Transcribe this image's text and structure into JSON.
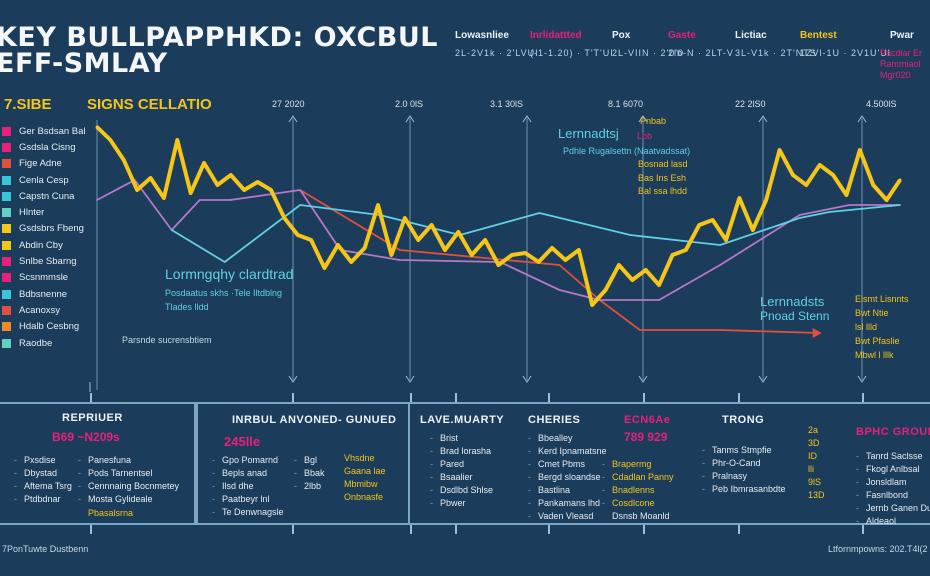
{
  "header": {
    "title_line1": "KEY BULLPAPPHKD: OXCBUL",
    "title_line2": "EFF-SMLAY"
  },
  "top_legend": [
    {
      "label": "Lowasnliee",
      "value": "2L-2V1k · 2'LVUI",
      "color": "#eef2f6"
    },
    {
      "label": "Inrlidattted",
      "value": "(-1-1.20) · T'T'UI",
      "color": "#e8207a"
    },
    {
      "label": "Pox",
      "value": "2L-VIIN · 2'0'0",
      "color": "#eef2f6"
    },
    {
      "label": "Gaste",
      "value": "2lb-N · 2LT-V",
      "color": "#e8207a"
    },
    {
      "label": "Lictiac",
      "value": "3L-V1k · 2T'NTS",
      "color": "#eef2f6"
    },
    {
      "label": "Bentest",
      "value": "1ZVl-1U · 2V1U'Ul",
      "color": "#f5c518"
    },
    {
      "label": "Pwar",
      "value": "",
      "color": "#eef2f6"
    }
  ],
  "pwar_lines": [
    "Pacdiar Er",
    "Rammiaol",
    "Mgr020"
  ],
  "section_labels": {
    "left": "7.SIBE",
    "main": "SIGNS CELLATIO"
  },
  "axis_labels": [
    "27 2020",
    "2.0 0lS",
    "3.1 30lS",
    "8.1 6070",
    "22 2lS0",
    "4.500lS"
  ],
  "side_legend": [
    {
      "label": "Ger Bsdsan Bal",
      "color": "#e8207a"
    },
    {
      "label": "Gsdsla Cisng",
      "color": "#e8207a"
    },
    {
      "label": "Fige Adne",
      "color": "#e0503c"
    },
    {
      "label": "Cenla Cesp",
      "color": "#39c6d8"
    },
    {
      "label": "Capstn Cuna",
      "color": "#39c6d8"
    },
    {
      "label": "Hlnter",
      "color": "#5fd3c0"
    },
    {
      "label": "Gsdsbrs Fbeng",
      "color": "#f5c518"
    },
    {
      "label": "Abdin Cby",
      "color": "#f5c518"
    },
    {
      "label": "Snlbe Sbarng",
      "color": "#e8207a"
    },
    {
      "label": "Scsnmmsle",
      "color": "#e8207a"
    },
    {
      "label": "Bdbsnenne",
      "color": "#39c6d8"
    },
    {
      "label": "Acanoxsy",
      "color": "#e0503c"
    },
    {
      "label": "Hdalb Cesbng",
      "color": "#f08a24"
    },
    {
      "label": "Raodbe",
      "color": "#5fd3c0"
    }
  ],
  "annotations": {
    "left_big": "Lormngqhy clardtrad",
    "left_sub": "Posdaatus skhs ·Tele Iltdblng",
    "left_sub2": "Tlades lldd",
    "left_foot": "Parsnde sucrensbtiem",
    "mid_big": "Lernnadtsj",
    "mid_pink": "Lbb",
    "mid_top": "Pnbab",
    "mid_sub": "Pdhle Rugalsettn (Naatvadssat)",
    "mid_list": [
      "Bosnad lasd",
      "Bas Ins Esh",
      "Bal ssa lhdd"
    ],
    "right_big": "Lernnadsts",
    "right_sub": "Pnoad Stenn",
    "right_list": [
      "Elsmt Lisnnts",
      "Bwt Ntie",
      "lsl llld",
      "Bwt Pfaslie",
      "Mbwl l lllk"
    ]
  },
  "chart_data": {
    "type": "line",
    "title": "SIGNS CELLATIO",
    "xlim": [
      0,
      100
    ],
    "ylim": [
      -10,
      210
    ],
    "series": [
      {
        "name": "Gsdsbrs Fbeng",
        "color": "#f5c518",
        "x_even": true,
        "values": [
          203,
          190,
          170,
          140,
          152,
          132,
          190,
          137,
          167,
          145,
          155,
          140,
          148,
          140,
          112,
          95,
          90,
          62,
          85,
          68,
          82,
          125,
          75,
          112,
          90,
          105,
          80,
          98,
          75,
          90,
          65,
          75,
          77,
          68,
          82,
          70,
          80,
          25,
          40,
          65,
          50,
          60,
          45,
          75,
          80,
          105,
          110,
          90,
          132,
          100,
          130,
          180,
          155,
          145,
          165,
          155,
          135,
          180,
          145,
          130,
          150
        ]
      },
      {
        "name": "Cenla Cesp",
        "color": "#62cfe3",
        "x": [
          9.3,
          15.9,
          25.3,
          35.2,
          45.2,
          55.1,
          66.4,
          77.6,
          87.5,
          91.2,
          100
        ],
        "values": [
          100,
          68,
          125,
          115,
          95,
          117,
          95,
          85,
          112,
          118,
          125
        ]
      },
      {
        "name": "Snlbe Sbarng",
        "color": "#b778c8",
        "x": [
          0,
          4.7,
          9.3,
          12.8,
          16.6,
          25.3,
          30.3,
          37.7,
          50.2,
          57.6,
          62.6,
          70,
          77.6,
          87.5,
          93.7,
          100
        ],
        "values": [
          130,
          150,
          100,
          130,
          130,
          140,
          80,
          70,
          68,
          40,
          30,
          30,
          65,
          115,
          125,
          125
        ]
      },
      {
        "name": "Acanoxsy",
        "color": "#e0503c",
        "x": [
          25.3,
          37.7,
          57.6,
          62.6,
          67.6,
          77.6,
          90
        ],
        "values": [
          140,
          80,
          65,
          30,
          0,
          0,
          -3
        ]
      }
    ]
  },
  "panels": {
    "p1": {
      "title": "REPRIUER",
      "value": "B69 ~N209s",
      "col1": [
        "Pxsdise",
        "Dbystad",
        "Aftema Tsrg",
        "Ptdbdnar"
      ],
      "col2": [
        "Panesfuna",
        "Pods Tarnentsel",
        "Cennnaing Bocnmetey",
        "Mosta Gylideale"
      ],
      "col2_hl": "Pbasalsrna"
    },
    "p2": {
      "title": "INRBUL ANVONED- GUNUED",
      "value": "245lle",
      "col1": [
        "Gpo Pomarnd",
        "Bepls anad",
        "Ilsd dhe",
        "Paatbeyr lnl",
        "Te Denwnagsle"
      ],
      "col2": [
        "Bgl",
        "Bbak",
        "2lbb"
      ],
      "col3": [
        "Vhsdne",
        "Gaana lae",
        "Mbmibw",
        "Onbnasfe"
      ]
    },
    "p3": {
      "title": "LAVE.MUARTY",
      "items": [
        "Brist",
        "Brad lorasha",
        "Pared",
        "Bsaalier",
        "Dsdlbd Shlse",
        "Pbwer"
      ]
    },
    "p4": {
      "title": "CHERIES",
      "items": [
        "Bbealley",
        "Kerd Ipnamatsne",
        "Cmet Pbms",
        "Bergd sloandse",
        "Bastlina",
        "Pankamans lhd",
        "Vaden Vleasd"
      ]
    },
    "p5": {
      "title": "ECN6Ae",
      "value": "789 929",
      "items": [
        "Brapermg",
        "Cdadlan Panny",
        "Bnadlenns",
        "Cosdlcone"
      ],
      "last": "Dsnsb Moanld"
    },
    "p6": {
      "title": "TRONG",
      "items": [
        "Tanms Stmpfie",
        "Phr-O-Cand",
        "Pralnasy",
        "Peb Ibmrasanbdte"
      ]
    },
    "p7": {
      "items": [
        "2a",
        "3D",
        "ID",
        "lli",
        "9lS",
        "13D"
      ]
    },
    "p8": {
      "title": "BPHC GROUP",
      "items": [
        "Tanrd Saclsse",
        "Fkogl Anlbsal",
        "Jonsldlam",
        "Fasnlbond",
        "Jernb Ganen Dusl",
        "Aldeaol"
      ]
    }
  },
  "footer": {
    "left": "7PonTuwte Dustbenn",
    "right": "Ltfornmpowns: 202.T4l(2"
  }
}
